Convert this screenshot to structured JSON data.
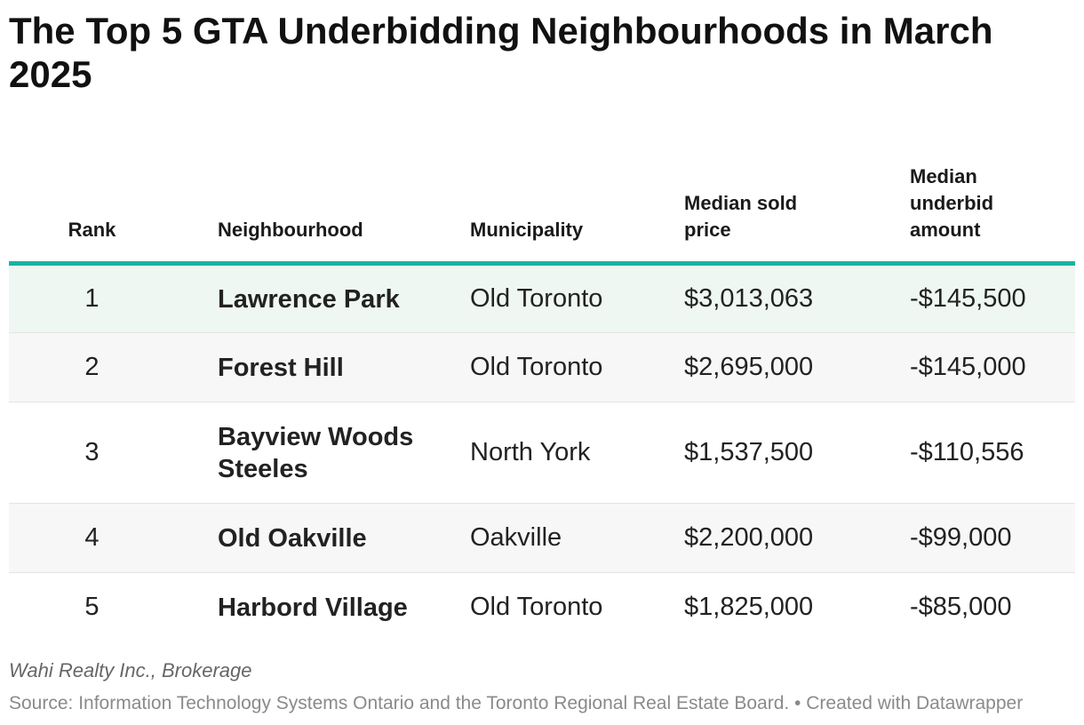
{
  "title": "The Top 5 GTA Underbidding Neighbourhoods in March 2025",
  "chart_data": {
    "type": "table",
    "title": "The Top 5 GTA Underbidding Neighbourhoods in March 2025",
    "columns": [
      {
        "label": "Rank",
        "lines": [
          "Rank"
        ]
      },
      {
        "label": "Neighbourhood",
        "lines": [
          "Neighbourhood"
        ]
      },
      {
        "label": "Municipality",
        "lines": [
          "Municipality"
        ]
      },
      {
        "label": "Median sold price",
        "lines": [
          "Median sold",
          "price"
        ]
      },
      {
        "label": "Median underbid amount",
        "lines": [
          "Median",
          "underbid",
          "amount"
        ]
      }
    ],
    "rows": [
      {
        "rank": "1",
        "neighbourhood": "Lawrence Park",
        "municipality": "Old Toronto",
        "median_sold_price": "$3,013,063",
        "median_underbid_amount": "-$145,500"
      },
      {
        "rank": "2",
        "neighbourhood": "Forest Hill",
        "municipality": "Old Toronto",
        "median_sold_price": "$2,695,000",
        "median_underbid_amount": "-$145,000"
      },
      {
        "rank": "3",
        "neighbourhood": "Bayview Woods Steeles",
        "municipality": "North York",
        "median_sold_price": "$1,537,500",
        "median_underbid_amount": "-$110,556"
      },
      {
        "rank": "4",
        "neighbourhood": "Old Oakville",
        "municipality": "Oakville",
        "median_sold_price": "$2,200,000",
        "median_underbid_amount": "-$99,000"
      },
      {
        "rank": "5",
        "neighbourhood": "Harbord Village",
        "municipality": "Old Toronto",
        "median_sold_price": "$1,825,000",
        "median_underbid_amount": "-$85,000"
      }
    ],
    "values": {
      "median_sold_price": [
        3013063,
        2695000,
        1537500,
        2200000,
        1825000
      ],
      "median_underbid_amount": [
        -145500,
        -145000,
        -110556,
        -99000,
        -85000
      ]
    },
    "colors": {
      "header_rule": "#1ab3a0",
      "highlight_row": "#eef7f1",
      "striped_row": "#f7f7f7"
    }
  },
  "footer": {
    "note": "Wahi Realty Inc., Brokerage",
    "source": "Source: Information Technology Systems Ontario and the Toronto Regional Real Estate Board. • Created with Datawrapper"
  }
}
